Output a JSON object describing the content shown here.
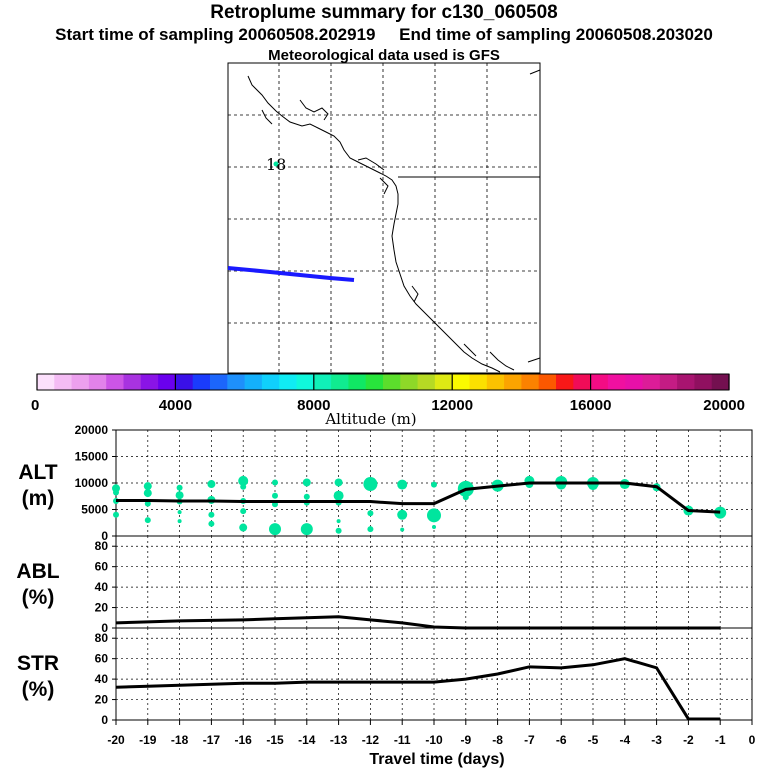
{
  "header": {
    "title": "Retroplume summary for c130_060508",
    "subtitle_start": "Start time of sampling 20060508.202919",
    "subtitle_end": "End time of sampling 20060508.203020",
    "met": "Meteorological data used is GFS"
  },
  "map": {
    "trajectory_label": "18",
    "trajectory_color": "#1a1aff",
    "marker_color": "#00e59e"
  },
  "colorbar": {
    "label": "Altitude (m)",
    "ticks": [
      "0",
      "4000",
      "8000",
      "12000",
      "16000",
      "20000"
    ],
    "range": [
      0,
      20000
    ],
    "colors": [
      "#fce0fc",
      "#f4bcf4",
      "#eca0ee",
      "#e282ea",
      "#cc55e6",
      "#a833e0",
      "#8a14e6",
      "#6a00ee",
      "#3a10e8",
      "#1a3cfc",
      "#1c66fc",
      "#1e90fc",
      "#14b0fc",
      "#10d0fc",
      "#10ecf4",
      "#10f8dc",
      "#10f0b8",
      "#10ec90",
      "#10e864",
      "#28e43c",
      "#5cde2c",
      "#8ed828",
      "#b6da24",
      "#deea14",
      "#fafa00",
      "#fce000",
      "#fcc200",
      "#fca400",
      "#fc8200",
      "#fc5800",
      "#f81818",
      "#f00c58",
      "#f40c84",
      "#f010a0",
      "#e810a8",
      "#dc1c98",
      "#c41c84",
      "#a81470",
      "#901060",
      "#741050"
    ]
  },
  "xaxis": {
    "label": "Travel time (days)",
    "ticks": [
      "-20",
      "-19",
      "-18",
      "-17",
      "-16",
      "-15",
      "-14",
      "-13",
      "-12",
      "-11",
      "-10",
      "-9",
      "-8",
      "-7",
      "-6",
      "-5",
      "-4",
      "-3",
      "-2",
      "-1",
      "0"
    ]
  },
  "chart_data": [
    {
      "type": "line",
      "name": "ALT",
      "ylabel": "ALT\n(m)",
      "ylabel_line1": "ALT",
      "ylabel_line2": "(m)",
      "xlim": [
        -20,
        0
      ],
      "ylim": [
        0,
        20000
      ],
      "yticks": [
        "0",
        "5000",
        "10000",
        "15000",
        "20000"
      ],
      "x": [
        -20,
        -19,
        -18,
        -17,
        -16,
        -15,
        -14,
        -13,
        -12,
        -11,
        -10,
        -9,
        -8,
        -7,
        -6,
        -5,
        -4,
        -3,
        -2,
        -1
      ],
      "values": [
        6700,
        6700,
        6600,
        6600,
        6500,
        6500,
        6500,
        6500,
        6500,
        6100,
        6100,
        8800,
        9400,
        10000,
        10000,
        10000,
        10000,
        9300,
        4800,
        4500
      ],
      "scatter": [
        [
          -20,
          9000,
          4
        ],
        [
          -20,
          8200,
          3
        ],
        [
          -20,
          6600,
          3
        ],
        [
          -20,
          4000,
          3
        ],
        [
          -19,
          9400,
          4
        ],
        [
          -19,
          8100,
          4
        ],
        [
          -19,
          6100,
          3
        ],
        [
          -19,
          3000,
          3
        ],
        [
          -18,
          9100,
          3
        ],
        [
          -18,
          7700,
          4
        ],
        [
          -18,
          6500,
          3
        ],
        [
          -18,
          4500,
          2
        ],
        [
          -18,
          2800,
          2
        ],
        [
          -17,
          9800,
          4
        ],
        [
          -17,
          6800,
          4
        ],
        [
          -17,
          4000,
          3
        ],
        [
          -17,
          2300,
          3
        ],
        [
          -16,
          10400,
          5
        ],
        [
          -16,
          9300,
          3
        ],
        [
          -16,
          6600,
          3
        ],
        [
          -16,
          4700,
          3
        ],
        [
          -16,
          1600,
          4
        ],
        [
          -15,
          10100,
          3
        ],
        [
          -15,
          7600,
          3
        ],
        [
          -15,
          6000,
          3
        ],
        [
          -15,
          1300,
          6
        ],
        [
          -14,
          10100,
          4
        ],
        [
          -14,
          7400,
          3
        ],
        [
          -14,
          6300,
          3
        ],
        [
          -14,
          1300,
          6
        ],
        [
          -13,
          10100,
          4
        ],
        [
          -13,
          7600,
          5
        ],
        [
          -13,
          6300,
          3
        ],
        [
          -13,
          2800,
          2
        ],
        [
          -13,
          1000,
          3
        ],
        [
          -12,
          9800,
          7
        ],
        [
          -12,
          4300,
          3
        ],
        [
          -12,
          1300,
          3
        ],
        [
          -11,
          9700,
          5
        ],
        [
          -11,
          4000,
          5
        ],
        [
          -11,
          1200,
          2
        ],
        [
          -10,
          9700,
          3
        ],
        [
          -10,
          3900,
          7
        ],
        [
          -10,
          1700,
          2
        ],
        [
          -9,
          8900,
          8
        ],
        [
          -9,
          7300,
          3
        ],
        [
          -8,
          9500,
          6
        ],
        [
          -7,
          10400,
          5
        ],
        [
          -7,
          9800,
          4
        ],
        [
          -6,
          10200,
          6
        ],
        [
          -6,
          9700,
          5
        ],
        [
          -5,
          10000,
          6
        ],
        [
          -5,
          9600,
          5
        ],
        [
          -4,
          9800,
          5
        ],
        [
          -3,
          9200,
          4
        ],
        [
          -2,
          4800,
          5
        ],
        [
          -1,
          4400,
          6
        ]
      ]
    },
    {
      "type": "line",
      "name": "ABL",
      "ylabel_line1": "ABL",
      "ylabel_line2": "(%)",
      "xlim": [
        -20,
        0
      ],
      "ylim": [
        0,
        90
      ],
      "yticks": [
        "0",
        "20",
        "40",
        "60",
        "80"
      ],
      "x": [
        -20,
        -19,
        -18,
        -17,
        -16,
        -15,
        -14,
        -13,
        -12,
        -11,
        -10,
        -9,
        -8,
        -7,
        -6,
        -5,
        -4,
        -3,
        -2,
        -1
      ],
      "values": [
        5,
        6,
        7,
        7.5,
        8,
        9,
        10,
        11,
        8,
        5,
        1,
        0,
        0,
        0,
        0,
        0,
        0,
        0,
        0,
        0
      ]
    },
    {
      "type": "line",
      "name": "STR",
      "ylabel_line1": "STR",
      "ylabel_line2": "(%)",
      "xlim": [
        -20,
        0
      ],
      "ylim": [
        0,
        90
      ],
      "yticks": [
        "0",
        "20",
        "40",
        "60",
        "80"
      ],
      "x": [
        -20,
        -19,
        -18,
        -17,
        -16,
        -15,
        -14,
        -13,
        -12,
        -11,
        -10,
        -9,
        -8,
        -7,
        -6,
        -5,
        -4,
        -3,
        -2,
        -1
      ],
      "values": [
        32,
        33,
        34,
        35,
        36,
        36,
        37,
        37,
        37,
        37,
        37,
        40,
        45,
        52,
        51,
        54,
        60,
        51,
        1,
        1
      ]
    }
  ]
}
